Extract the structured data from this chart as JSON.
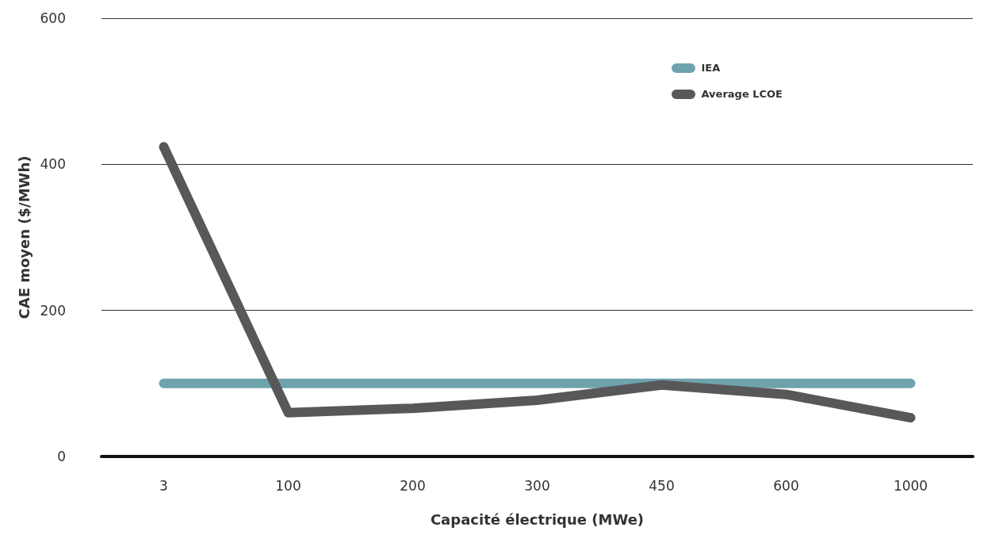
{
  "chart_data": {
    "type": "line",
    "xlabel": "Capacité électrique (MWe)",
    "ylabel": "CAE moyen ($/MWh)",
    "categories": [
      "3",
      "100",
      "200",
      "300",
      "450",
      "600",
      "1000"
    ],
    "series": [
      {
        "name": "IEA",
        "color": "#6ea3ad",
        "values": [
          100,
          100,
          100,
          100,
          100,
          100,
          100
        ]
      },
      {
        "name": "Average LCOE",
        "color": "#58585a",
        "values": [
          424,
          60,
          66,
          77,
          98,
          85,
          53
        ]
      }
    ],
    "ylim": [
      0,
      600
    ],
    "yticks": [
      0,
      200,
      400,
      600
    ],
    "grid": "y",
    "legend": "top right",
    "marker": "none",
    "line_style": "solid"
  }
}
